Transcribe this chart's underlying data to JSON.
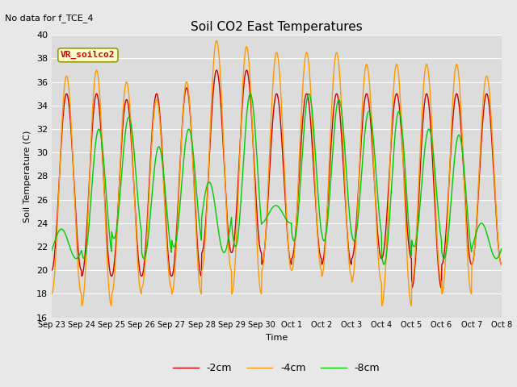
{
  "title": "Soil CO2 East Temperatures",
  "no_data_text": "No data for f_TCE_4",
  "ylabel": "Soil Temperature (C)",
  "xlabel": "Time",
  "ylim": [
    16,
    40
  ],
  "bg_color": "#e8e8e8",
  "plot_bg_color": "#dcdcdc",
  "legend_labels": [
    "-2cm",
    "-4cm",
    "-8cm"
  ],
  "legend_colors": [
    "#cc0000",
    "#ff9900",
    "#00cc00"
  ],
  "xtick_labels": [
    "Sep 23",
    "Sep 24",
    "Sep 25",
    "Sep 26",
    "Sep 27",
    "Sep 28",
    "Sep 29",
    "Sep 30",
    "Oct 1",
    "Oct 2",
    "Oct 3",
    "Oct 4",
    "Oct 5",
    "Oct 6",
    "Oct 7",
    "Oct 8"
  ],
  "annotation_text": "VR_soilco2",
  "red_peaks": [
    35.0,
    35.0,
    34.5,
    35.0,
    35.5,
    37.0,
    37.0,
    35.0,
    35.0,
    35.0,
    35.0,
    35.0,
    35.0,
    35.0,
    35.0
  ],
  "red_mins": [
    20.0,
    19.5,
    19.5,
    19.5,
    19.5,
    21.5,
    21.5,
    20.5,
    21.0,
    20.5,
    21.0,
    21.0,
    18.5,
    20.5,
    20.5
  ],
  "orange_peaks": [
    36.5,
    37.0,
    36.0,
    34.5,
    36.0,
    39.5,
    39.0,
    38.5,
    38.5,
    38.5,
    37.5,
    37.5,
    37.5,
    37.5,
    36.5
  ],
  "orange_mins": [
    18.0,
    17.0,
    18.0,
    18.5,
    18.0,
    20.0,
    18.0,
    20.0,
    20.0,
    19.5,
    19.0,
    17.0,
    19.0,
    18.0,
    20.5
  ],
  "green_peaks": [
    23.5,
    32.0,
    33.0,
    30.5,
    32.0,
    27.5,
    35.0,
    25.5,
    35.0,
    34.5,
    33.5,
    33.5,
    32.0,
    31.5,
    24.0
  ],
  "green_mins": [
    21.0,
    21.0,
    22.7,
    21.0,
    22.0,
    21.5,
    22.0,
    24.0,
    22.5,
    22.5,
    22.5,
    20.5,
    22.0,
    21.0,
    21.0
  ],
  "green_phases": [
    0.35,
    -0.15,
    -0.15,
    -0.15,
    -0.15,
    0.5,
    -0.25,
    0.05,
    -0.15,
    -0.15,
    -0.15,
    -0.15,
    -0.15,
    -0.15,
    0.35
  ]
}
